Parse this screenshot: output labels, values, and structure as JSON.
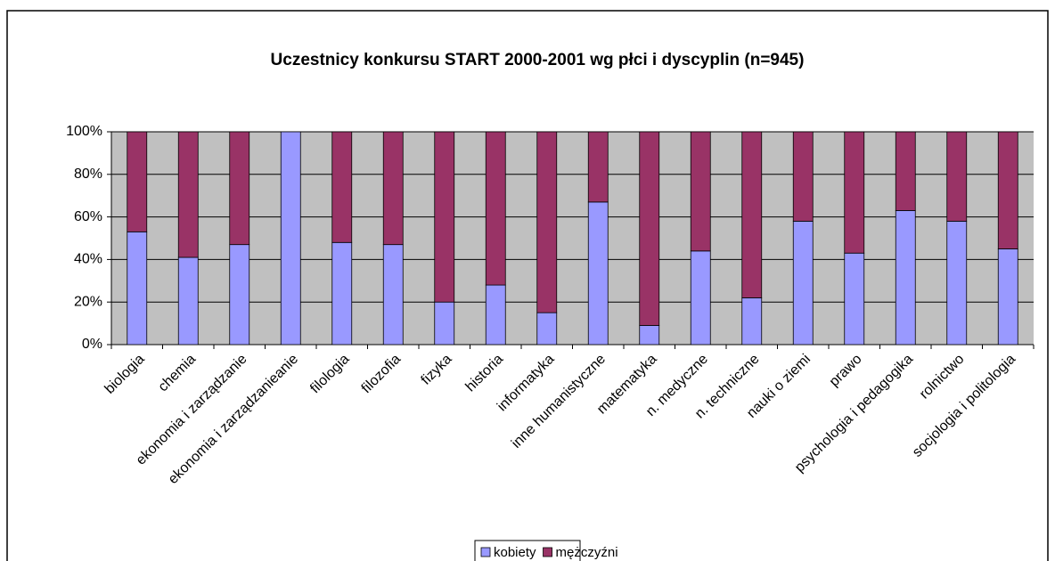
{
  "chart_data": {
    "type": "stacked_bar_100",
    "title": "Uczestnicy konkursu START 2000-2001 wg płci i dyscyplin (n=945)",
    "categories": [
      "biologia",
      "chemia",
      "ekonomia i zarządzanie",
      "ekonomia i zarządzanieanie",
      "filologia",
      "filozofia",
      "fizyka",
      "historia",
      "informatyka",
      "inne humanistyczne",
      "matematyka",
      "n. medyczne",
      "n. techniczne",
      "nauki o ziemi",
      "prawo",
      "psychologia i pedagogika",
      "rolnictwo",
      "socjologia i politologia"
    ],
    "series": [
      {
        "name": "kobiety",
        "color": "#9999ff",
        "values": [
          53,
          41,
          47,
          100,
          48,
          47,
          20,
          28,
          15,
          67,
          9,
          44,
          22,
          58,
          43,
          63,
          58,
          45
        ]
      },
      {
        "name": "mężczyźni",
        "color": "#993366",
        "values": [
          47,
          59,
          53,
          0,
          52,
          53,
          80,
          72,
          85,
          33,
          91,
          56,
          78,
          42,
          57,
          37,
          42,
          55
        ]
      }
    ],
    "ylim": [
      0,
      100
    ],
    "yticks": [
      {
        "value": 0,
        "label": "0%"
      },
      {
        "value": 20,
        "label": "20%"
      },
      {
        "value": 40,
        "label": "40%"
      },
      {
        "value": 60,
        "label": "60%"
      },
      {
        "value": 80,
        "label": "80%"
      },
      {
        "value": 100,
        "label": "100%"
      }
    ],
    "grid": true,
    "legend": "bottom"
  }
}
